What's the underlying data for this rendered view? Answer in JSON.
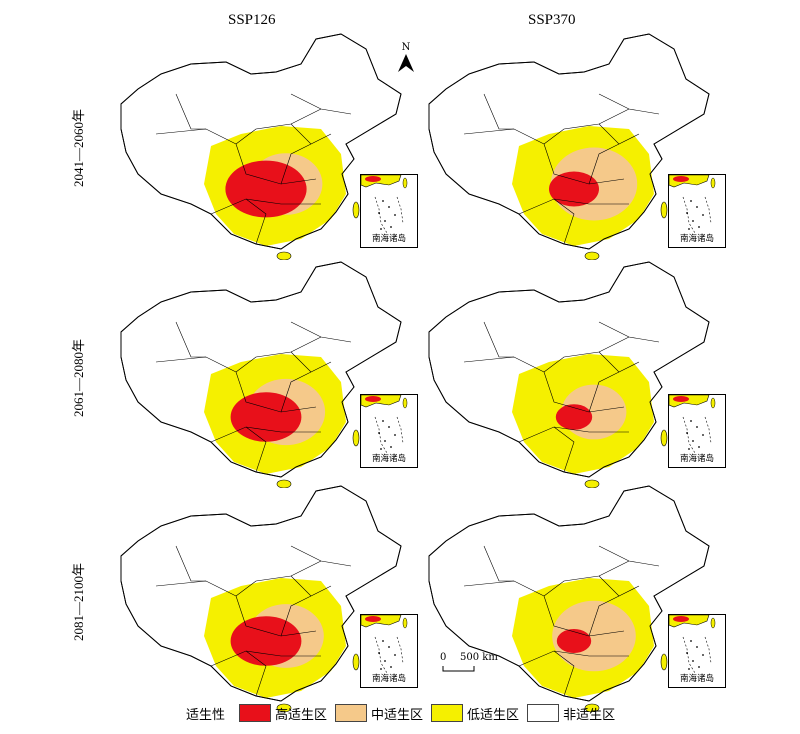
{
  "columns": [
    "SSP126",
    "SSP370"
  ],
  "rows": [
    "2041—2060年",
    "2061—2080年",
    "2081—2100年"
  ],
  "inset_label": "南海诸岛",
  "north_label": "N",
  "scale": {
    "zero": "0",
    "distance": "500 km"
  },
  "legend": {
    "title": "适生性",
    "items": [
      {
        "label": "高适生区",
        "color": "#e8101a"
      },
      {
        "label": "中适生区",
        "color": "#f5c98a"
      },
      {
        "label": "低适生区",
        "color": "#f5f000"
      },
      {
        "label": "非适生区",
        "color": "#ffffff"
      }
    ]
  },
  "panels": [
    {
      "scenario": "SSP126",
      "period": "2041—2060年",
      "dominant": "高适生区",
      "mid_share": 0.35,
      "high_share": 0.55
    },
    {
      "scenario": "SSP370",
      "period": "2041—2060年",
      "dominant": "中适生区",
      "mid_share": 0.6,
      "high_share": 0.25
    },
    {
      "scenario": "SSP126",
      "period": "2061—2080年",
      "dominant": "高适生区",
      "mid_share": 0.45,
      "high_share": 0.45
    },
    {
      "scenario": "SSP370",
      "period": "2061—2080年",
      "dominant": "低适生区",
      "mid_share": 0.2,
      "high_share": 0.12
    },
    {
      "scenario": "SSP126",
      "period": "2081—2100年",
      "dominant": "高适生区",
      "mid_share": 0.4,
      "high_share": 0.45
    },
    {
      "scenario": "SSP370",
      "period": "2081—2100年",
      "dominant": "中适生区",
      "mid_share": 0.55,
      "high_share": 0.1
    }
  ]
}
